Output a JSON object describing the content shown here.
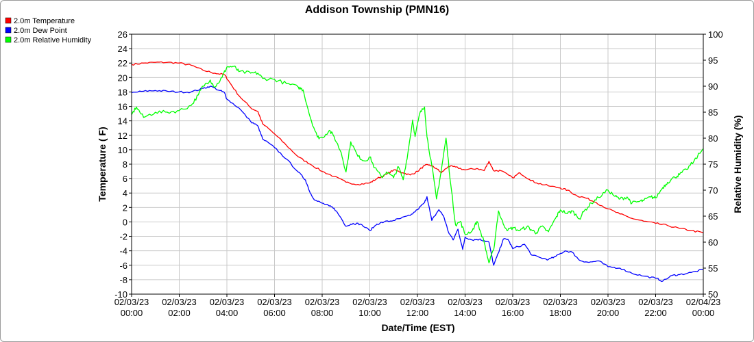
{
  "chart_data": {
    "type": "line",
    "title": "Addison Township (PMN16)",
    "xlabel": "Date/Time (EST)",
    "ylabel": "Temperature ( F)",
    "y2label": "Relative Humidity (%)",
    "grid": true,
    "legend_placement": "top-left",
    "xlim": [
      0,
      24
    ],
    "ylim": [
      -10,
      26
    ],
    "y2lim": [
      50,
      100
    ],
    "x_ticks": [
      {
        "value": 0,
        "date": "02/03/23",
        "time": "00:00"
      },
      {
        "value": 2,
        "date": "02/03/23",
        "time": "02:00"
      },
      {
        "value": 4,
        "date": "02/03/23",
        "time": "04:00"
      },
      {
        "value": 6,
        "date": "02/03/23",
        "time": "06:00"
      },
      {
        "value": 8,
        "date": "02/03/23",
        "time": "08:00"
      },
      {
        "value": 10,
        "date": "02/03/23",
        "time": "10:00"
      },
      {
        "value": 12,
        "date": "02/03/23",
        "time": "12:00"
      },
      {
        "value": 14,
        "date": "02/03/23",
        "time": "14:00"
      },
      {
        "value": 16,
        "date": "02/03/23",
        "time": "16:00"
      },
      {
        "value": 18,
        "date": "02/03/23",
        "time": "18:00"
      },
      {
        "value": 20,
        "date": "02/03/23",
        "time": "20:00"
      },
      {
        "value": 22,
        "date": "02/03/23",
        "time": "22:00"
      },
      {
        "value": 24,
        "date": "02/04/23",
        "time": "00:00"
      }
    ],
    "y_ticks": [
      "-10",
      "-8",
      "-6",
      "-4",
      "-2",
      "0",
      "2",
      "4",
      "6",
      "8",
      "10",
      "12",
      "14",
      "16",
      "18",
      "20",
      "22",
      "24",
      "26"
    ],
    "y2_ticks": [
      "50",
      "55",
      "60",
      "65",
      "70",
      "75",
      "80",
      "85",
      "90",
      "95",
      "100"
    ],
    "series": [
      {
        "name": "2.0m Temperature",
        "color": "#ff0000",
        "axis": "left",
        "points": [
          [
            0,
            21.8
          ],
          [
            0.5,
            22.0
          ],
          [
            1.0,
            22.1
          ],
          [
            1.5,
            22.1
          ],
          [
            2.0,
            22.0
          ],
          [
            2.5,
            21.7
          ],
          [
            3.0,
            21.0
          ],
          [
            3.5,
            20.6
          ],
          [
            3.9,
            20.4
          ],
          [
            4.1,
            19.4
          ],
          [
            4.5,
            17.5
          ],
          [
            5.0,
            15.8
          ],
          [
            5.3,
            15.3
          ],
          [
            5.5,
            13.6
          ],
          [
            6.0,
            12.2
          ],
          [
            6.5,
            10.6
          ],
          [
            7.0,
            9.0
          ],
          [
            7.5,
            8.0
          ],
          [
            8.0,
            7.0
          ],
          [
            8.5,
            6.3
          ],
          [
            9.0,
            5.5
          ],
          [
            9.5,
            5.2
          ],
          [
            10.0,
            5.4
          ],
          [
            10.3,
            6.0
          ],
          [
            10.7,
            6.6
          ],
          [
            11.0,
            7.2
          ],
          [
            11.4,
            6.8
          ],
          [
            11.7,
            6.5
          ],
          [
            12.0,
            7.0
          ],
          [
            12.3,
            7.8
          ],
          [
            12.5,
            7.9
          ],
          [
            12.8,
            7.4
          ],
          [
            13.0,
            6.8
          ],
          [
            13.3,
            7.7
          ],
          [
            13.6,
            7.6
          ],
          [
            14.0,
            7.2
          ],
          [
            14.5,
            7.4
          ],
          [
            14.8,
            7.1
          ],
          [
            15.0,
            8.4
          ],
          [
            15.2,
            7.1
          ],
          [
            15.5,
            7.1
          ],
          [
            16.0,
            6.1
          ],
          [
            16.3,
            6.8
          ],
          [
            16.7,
            5.9
          ],
          [
            17.0,
            5.4
          ],
          [
            17.5,
            5.0
          ],
          [
            18.0,
            4.7
          ],
          [
            18.3,
            4.4
          ],
          [
            18.7,
            3.6
          ],
          [
            19.0,
            3.4
          ],
          [
            19.5,
            2.7
          ],
          [
            20.0,
            1.8
          ],
          [
            20.5,
            1.1
          ],
          [
            21.0,
            0.5
          ],
          [
            21.5,
            0.1
          ],
          [
            22.0,
            -0.2
          ],
          [
            22.5,
            -0.5
          ],
          [
            23.0,
            -0.9
          ],
          [
            23.5,
            -1.2
          ],
          [
            24.0,
            -1.5
          ]
        ]
      },
      {
        "name": "2.0m Dew Point",
        "color": "#0000ff",
        "axis": "left",
        "points": [
          [
            0,
            17.9
          ],
          [
            0.5,
            18.1
          ],
          [
            1.0,
            18.2
          ],
          [
            1.5,
            18.1
          ],
          [
            2.0,
            18.0
          ],
          [
            2.5,
            18.0
          ],
          [
            3.0,
            18.5
          ],
          [
            3.3,
            18.8
          ],
          [
            3.7,
            18.2
          ],
          [
            3.9,
            17.9
          ],
          [
            4.0,
            17.0
          ],
          [
            4.5,
            15.8
          ],
          [
            5.0,
            13.9
          ],
          [
            5.3,
            13.3
          ],
          [
            5.5,
            11.5
          ],
          [
            6.0,
            10.3
          ],
          [
            6.5,
            8.7
          ],
          [
            7.0,
            6.9
          ],
          [
            7.3,
            5.8
          ],
          [
            7.5,
            4.0
          ],
          [
            7.7,
            3.0
          ],
          [
            8.0,
            2.6
          ],
          [
            8.3,
            2.2
          ],
          [
            8.5,
            1.9
          ],
          [
            8.8,
            0.5
          ],
          [
            9.0,
            -0.6
          ],
          [
            9.3,
            -0.2
          ],
          [
            9.6,
            -0.3
          ],
          [
            10.0,
            -1.2
          ],
          [
            10.3,
            -0.3
          ],
          [
            10.6,
            0.0
          ],
          [
            11.0,
            0.2
          ],
          [
            11.3,
            0.5
          ],
          [
            11.7,
            0.9
          ],
          [
            12.0,
            1.7
          ],
          [
            12.3,
            2.7
          ],
          [
            12.4,
            3.5
          ],
          [
            12.6,
            0.2
          ],
          [
            12.9,
            1.7
          ],
          [
            13.1,
            0.8
          ],
          [
            13.3,
            -1.4
          ],
          [
            13.5,
            -2.5
          ],
          [
            13.7,
            -1.0
          ],
          [
            13.9,
            -3.8
          ],
          [
            14.0,
            -2.1
          ],
          [
            14.3,
            -2.5
          ],
          [
            14.6,
            -2.4
          ],
          [
            14.8,
            -2.6
          ],
          [
            15.0,
            -2.8
          ],
          [
            15.2,
            -6.0
          ],
          [
            15.4,
            -4.3
          ],
          [
            15.6,
            -2.4
          ],
          [
            15.8,
            -2.4
          ],
          [
            16.0,
            -3.7
          ],
          [
            16.5,
            -3.1
          ],
          [
            16.8,
            -4.6
          ],
          [
            17.2,
            -5.0
          ],
          [
            17.5,
            -5.2
          ],
          [
            17.8,
            -4.8
          ],
          [
            18.2,
            -4.0
          ],
          [
            18.5,
            -4.2
          ],
          [
            18.8,
            -5.3
          ],
          [
            19.2,
            -5.6
          ],
          [
            19.6,
            -5.4
          ],
          [
            20.0,
            -6.2
          ],
          [
            20.5,
            -6.4
          ],
          [
            21.0,
            -7.1
          ],
          [
            21.5,
            -7.5
          ],
          [
            22.0,
            -7.8
          ],
          [
            22.3,
            -8.2
          ],
          [
            22.7,
            -7.4
          ],
          [
            23.0,
            -7.3
          ],
          [
            23.5,
            -7.0
          ],
          [
            24.0,
            -6.6
          ]
        ]
      },
      {
        "name": "2.0m Relative Humidity",
        "color": "#00ff00",
        "axis": "right",
        "points": [
          [
            0,
            84.5
          ],
          [
            0.2,
            86.0
          ],
          [
            0.5,
            84.0
          ],
          [
            1.0,
            85.0
          ],
          [
            1.5,
            85.0
          ],
          [
            2.0,
            85.3
          ],
          [
            2.5,
            86.3
          ],
          [
            2.8,
            88.3
          ],
          [
            3.0,
            90.0
          ],
          [
            3.3,
            91.2
          ],
          [
            3.5,
            89.8
          ],
          [
            3.8,
            91.7
          ],
          [
            4.0,
            93.7
          ],
          [
            4.3,
            93.8
          ],
          [
            4.5,
            92.8
          ],
          [
            5.0,
            92.5
          ],
          [
            5.3,
            92.5
          ],
          [
            5.5,
            91.5
          ],
          [
            6.0,
            91.3
          ],
          [
            6.5,
            90.5
          ],
          [
            7.0,
            89.8
          ],
          [
            7.2,
            89.3
          ],
          [
            7.5,
            84.0
          ],
          [
            7.8,
            80.2
          ],
          [
            8.0,
            80.1
          ],
          [
            8.3,
            81.5
          ],
          [
            8.5,
            80.3
          ],
          [
            8.8,
            77.2
          ],
          [
            9.0,
            73.5
          ],
          [
            9.2,
            79.3
          ],
          [
            9.5,
            76.5
          ],
          [
            9.8,
            75.6
          ],
          [
            10.0,
            76.4
          ],
          [
            10.2,
            74.3
          ],
          [
            10.5,
            72.5
          ],
          [
            10.7,
            73.5
          ],
          [
            11.0,
            72.4
          ],
          [
            11.2,
            74.5
          ],
          [
            11.4,
            72.0
          ],
          [
            11.6,
            77.2
          ],
          [
            11.8,
            83.5
          ],
          [
            11.9,
            80.3
          ],
          [
            12.1,
            84.8
          ],
          [
            12.3,
            86.0
          ],
          [
            12.4,
            80.3
          ],
          [
            12.6,
            74.8
          ],
          [
            12.8,
            68.3
          ],
          [
            13.0,
            73.8
          ],
          [
            13.2,
            80.0
          ],
          [
            13.4,
            71.0
          ],
          [
            13.6,
            63.3
          ],
          [
            13.8,
            64.0
          ],
          [
            14.0,
            61.5
          ],
          [
            14.3,
            62.2
          ],
          [
            14.5,
            64.0
          ],
          [
            14.8,
            60.0
          ],
          [
            15.0,
            56.0
          ],
          [
            15.2,
            58.5
          ],
          [
            15.4,
            66.0
          ],
          [
            15.6,
            63.5
          ],
          [
            15.8,
            62.3
          ],
          [
            16.0,
            62.8
          ],
          [
            16.3,
            62.2
          ],
          [
            16.6,
            63.0
          ],
          [
            16.8,
            62.3
          ],
          [
            17.0,
            61.8
          ],
          [
            17.2,
            63.0
          ],
          [
            17.5,
            62.0
          ],
          [
            17.8,
            64.6
          ],
          [
            18.0,
            66.2
          ],
          [
            18.3,
            65.5
          ],
          [
            18.5,
            66.0
          ],
          [
            18.8,
            64.5
          ],
          [
            19.0,
            66.0
          ],
          [
            19.3,
            67.5
          ],
          [
            19.6,
            68.6
          ],
          [
            20.0,
            70.0
          ],
          [
            20.3,
            68.8
          ],
          [
            20.5,
            68.3
          ],
          [
            20.8,
            68.7
          ],
          [
            21.0,
            67.5
          ],
          [
            21.3,
            67.8
          ],
          [
            21.5,
            68.0
          ],
          [
            21.8,
            68.7
          ],
          [
            22.0,
            68.5
          ],
          [
            22.3,
            70.5
          ],
          [
            22.5,
            71.5
          ],
          [
            22.8,
            72.5
          ],
          [
            23.0,
            73.0
          ],
          [
            23.3,
            74.0
          ],
          [
            23.6,
            75.5
          ],
          [
            24.0,
            78.0
          ]
        ]
      }
    ]
  }
}
